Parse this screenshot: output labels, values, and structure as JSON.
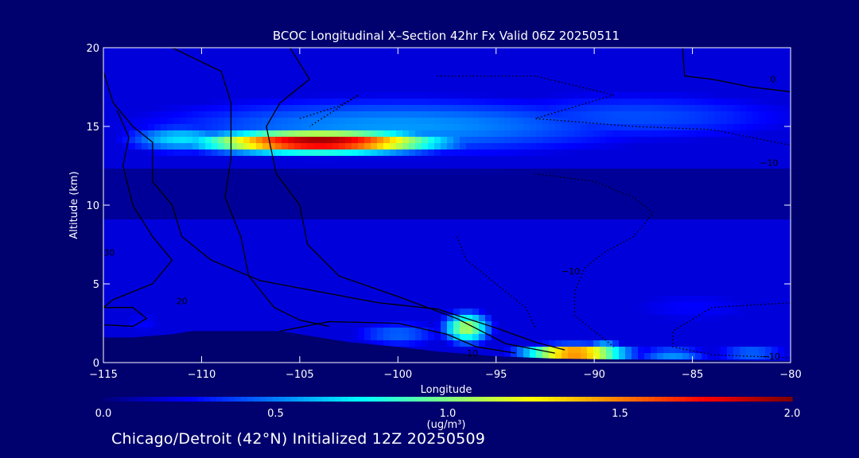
{
  "chart_data": {
    "type": "heatmap",
    "title": "BCOC Longitudinal X–Section 42hr  Fx Valid 06Z 20250511",
    "xlabel": "Longitude",
    "ylabel": "Altitude (km)",
    "xlim": [
      -115,
      -80
    ],
    "ylim": [
      0,
      20
    ],
    "x_ticks": [
      -115,
      -110,
      -105,
      -100,
      -95,
      -90,
      -85,
      -80
    ],
    "x_tick_labels": [
      "−115",
      "−110",
      "−105",
      "−100",
      "−95",
      "−90",
      "−85",
      "−80"
    ],
    "y_ticks": [
      0,
      5,
      10,
      15,
      20
    ],
    "y_tick_labels": [
      "0",
      "5",
      "10",
      "15",
      "20"
    ],
    "colorbar": {
      "label": "(ug/m³)",
      "range": [
        0.0,
        2.0
      ],
      "ticks": [
        0.0,
        0.5,
        1.0,
        1.5,
        2.0
      ],
      "tick_labels": [
        "0.0",
        "0.5",
        "1.0",
        "1.5",
        "2.0"
      ],
      "colormap": [
        "#00007f",
        "#0000ff",
        "#0080ff",
        "#00ffff",
        "#80ff80",
        "#ffff00",
        "#ff8000",
        "#ff0000",
        "#7f0000"
      ]
    },
    "field_blobs": [
      {
        "lon": -104,
        "alt": 14.0,
        "slon": 6.0,
        "salt": 0.7,
        "value": 2.0
      },
      {
        "lon": -111,
        "alt": 14.2,
        "slon": 3.0,
        "salt": 0.9,
        "value": 0.7
      },
      {
        "lon": -100,
        "alt": 15.0,
        "slon": 14.0,
        "salt": 2.0,
        "value": 0.55
      },
      {
        "lon": -88,
        "alt": 15.6,
        "slon": 10.0,
        "salt": 1.8,
        "value": 0.4
      },
      {
        "lon": -87,
        "alt": 17.5,
        "slon": 9.0,
        "salt": 2.0,
        "value": 0.15
      },
      {
        "lon": -96.5,
        "alt": 2.2,
        "slon": 1.2,
        "salt": 1.0,
        "value": 1.1
      },
      {
        "lon": -91,
        "alt": 0.6,
        "slon": 2.6,
        "salt": 0.5,
        "value": 1.7
      },
      {
        "lon": -89.5,
        "alt": 0.9,
        "slon": 0.9,
        "salt": 0.5,
        "value": 0.8
      },
      {
        "lon": -86,
        "alt": 0.5,
        "slon": 2.0,
        "salt": 0.5,
        "value": 0.55
      },
      {
        "lon": -82,
        "alt": 0.6,
        "slon": 2.0,
        "salt": 0.5,
        "value": 0.5
      },
      {
        "lon": -85,
        "alt": 3.5,
        "slon": 5.0,
        "salt": 1.5,
        "value": 0.25
      },
      {
        "lon": -100,
        "alt": 1.8,
        "slon": 2.5,
        "salt": 0.9,
        "value": 0.45
      },
      {
        "lon": -113,
        "alt": 2.5,
        "slon": 1.5,
        "salt": 1.0,
        "value": 0.25
      },
      {
        "lon": -111,
        "alt": 5.0,
        "slon": 3.0,
        "salt": 1.5,
        "value": 0.1
      }
    ],
    "terrain": [
      [
        -115,
        1.6
      ],
      [
        -113.5,
        1.6
      ],
      [
        -111.5,
        1.8
      ],
      [
        -110.5,
        2.0
      ],
      [
        -106,
        2.0
      ],
      [
        -104.5,
        1.7
      ],
      [
        -102.5,
        1.3
      ],
      [
        -100,
        1.0
      ],
      [
        -98,
        0.7
      ],
      [
        -95,
        0.4
      ],
      [
        -92,
        0.25
      ],
      [
        -89,
        0.2
      ],
      [
        -85,
        0.15
      ],
      [
        -80,
        0.1
      ]
    ],
    "contours": [
      {
        "style": "solid",
        "points": [
          [
            -111.5,
            20
          ],
          [
            -109,
            18.5
          ],
          [
            -108.5,
            16.5
          ],
          [
            -108.5,
            13.0
          ],
          [
            -108.8,
            10.5
          ],
          [
            -108.0,
            8.0
          ],
          [
            -107.6,
            5.5
          ],
          [
            -106.3,
            3.5
          ],
          [
            -105,
            2.7
          ],
          [
            -103.5,
            2.3
          ]
        ]
      },
      {
        "style": "solid",
        "points": [
          [
            -105.5,
            20
          ],
          [
            -104.5,
            18
          ],
          [
            -106,
            16.5
          ],
          [
            -106.7,
            15
          ],
          [
            -106.2,
            12
          ],
          [
            -105,
            10
          ],
          [
            -104.6,
            7.5
          ],
          [
            -103,
            5.5
          ],
          [
            -100,
            4.2
          ],
          [
            -97,
            2.8
          ],
          [
            -94.5,
            1.2
          ],
          [
            -92,
            0.6
          ]
        ]
      },
      {
        "style": "solid",
        "points": [
          [
            -115,
            18.5
          ],
          [
            -114.5,
            16.5
          ],
          [
            -113.5,
            15
          ],
          [
            -112.5,
            14
          ],
          [
            -112.5,
            11.5
          ],
          [
            -111.5,
            10
          ],
          [
            -111,
            8
          ],
          [
            -109.5,
            6.5
          ],
          [
            -107,
            5.2
          ],
          [
            -104,
            4.5
          ],
          [
            -101,
            3.8
          ],
          [
            -98,
            3.4
          ],
          [
            -95,
            2.2
          ],
          [
            -93,
            1.3
          ],
          [
            -91.5,
            0.8
          ]
        ]
      },
      {
        "style": "solid",
        "points": [
          [
            -114.3,
            16
          ],
          [
            -113.7,
            14.3
          ],
          [
            -114,
            12.5
          ],
          [
            -113.5,
            10
          ],
          [
            -112.5,
            8
          ],
          [
            -111.5,
            6.5
          ],
          [
            -112.5,
            5
          ],
          [
            -114.5,
            4
          ],
          [
            -115,
            3.5
          ]
        ]
      },
      {
        "style": "solid",
        "points": [
          [
            -106,
            2.0
          ],
          [
            -103.5,
            2.6
          ],
          [
            -100,
            2.5
          ],
          [
            -97.5,
            1.8
          ],
          [
            -96,
            1.0
          ],
          [
            -94,
            0.6
          ]
        ]
      },
      {
        "style": "solid",
        "points": [
          [
            -115,
            3.5
          ],
          [
            -113.5,
            3.5
          ],
          [
            -112.8,
            2.8
          ],
          [
            -113.5,
            2.3
          ],
          [
            -115,
            2.4
          ]
        ]
      },
      {
        "style": "solid",
        "points": [
          [
            -85.5,
            20
          ],
          [
            -85.4,
            18.2
          ],
          [
            -84,
            18.0
          ],
          [
            -82,
            17.5
          ],
          [
            -80,
            17.2
          ]
        ]
      },
      {
        "style": "dotted",
        "points": [
          [
            -105,
            15.5
          ],
          [
            -103,
            16.3
          ],
          [
            -102,
            17
          ],
          [
            -103.5,
            15.8
          ],
          [
            -104.5,
            15
          ]
        ]
      },
      {
        "style": "dotted",
        "points": [
          [
            -98,
            18.2
          ],
          [
            -93,
            18.2
          ],
          [
            -89,
            17
          ],
          [
            -93,
            15.5
          ],
          [
            -88,
            15
          ],
          [
            -84,
            14.8
          ],
          [
            -80,
            13.8
          ]
        ]
      },
      {
        "style": "dotted",
        "points": [
          [
            -93,
            12
          ],
          [
            -90,
            11.5
          ],
          [
            -88,
            10.5
          ],
          [
            -87,
            9.5
          ],
          [
            -88,
            8.0
          ],
          [
            -89.5,
            7.0
          ],
          [
            -90.5,
            6.0
          ],
          [
            -91,
            4.5
          ],
          [
            -91,
            3.0
          ],
          [
            -89.5,
            1.5
          ],
          [
            -89,
            1.0
          ]
        ]
      },
      {
        "style": "dotted",
        "points": [
          [
            -97,
            8
          ],
          [
            -96.5,
            6.5
          ],
          [
            -95,
            5
          ],
          [
            -93.5,
            3.5
          ],
          [
            -93,
            2.2
          ]
        ]
      },
      {
        "style": "dotted",
        "points": [
          [
            -80,
            3.8
          ],
          [
            -84,
            3.5
          ],
          [
            -86,
            2.0
          ],
          [
            -86,
            1.0
          ],
          [
            -84,
            0.5
          ],
          [
            -80,
            0.3
          ]
        ]
      }
    ],
    "contour_labels": [
      {
        "text": "0",
        "lon": -80.9,
        "alt": 17.8
      },
      {
        "text": "−10",
        "lon": -81.1,
        "alt": 12.5
      },
      {
        "text": "−10",
        "lon": -91.2,
        "alt": 5.6
      },
      {
        "text": "−10",
        "lon": -81,
        "alt": 0.2
      },
      {
        "text": "10",
        "lon": -96.2,
        "alt": 0.4
      },
      {
        "text": "20",
        "lon": -111.0,
        "alt": 3.7
      },
      {
        "text": "30",
        "lon": -114.7,
        "alt": 6.8
      }
    ]
  },
  "footer_text": "Chicago/Detroit (42°N) Initialized 12Z 20250509"
}
